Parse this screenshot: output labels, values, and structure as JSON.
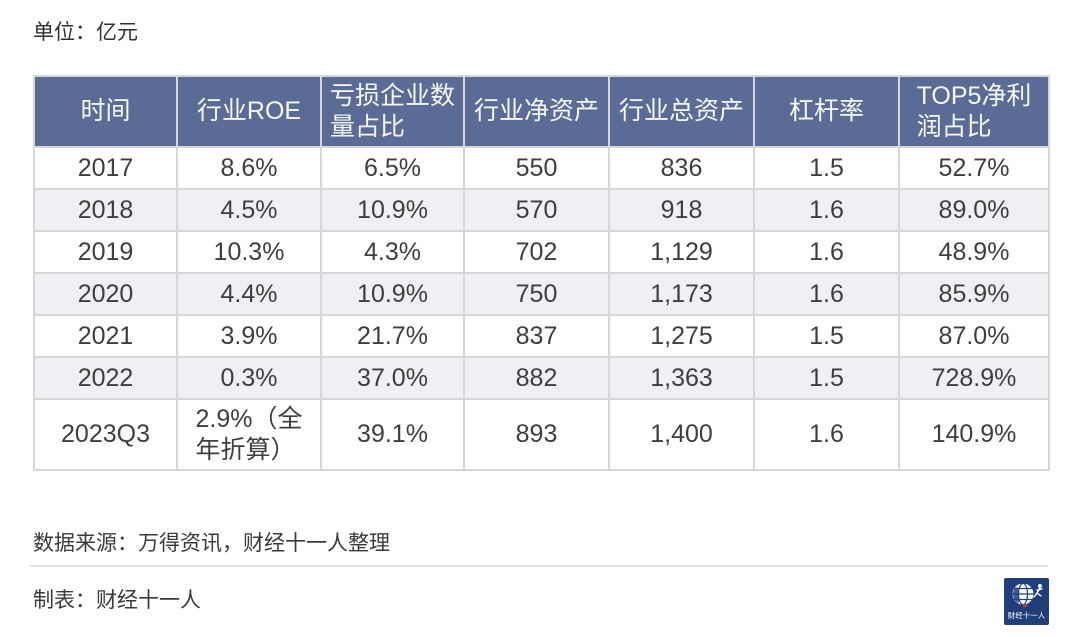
{
  "chart_data": {
    "type": "table",
    "unit": "单位：亿元",
    "columns": [
      {
        "key": "time",
        "label": "时间"
      },
      {
        "key": "industry-roe",
        "label": "行业ROE"
      },
      {
        "key": "loss-company-count-ratio",
        "label": "亏损企业数\n量占比"
      },
      {
        "key": "industry-net-assets",
        "label": "行业净资产"
      },
      {
        "key": "industry-total-assets",
        "label": "行业总资产"
      },
      {
        "key": "leverage-ratio",
        "label": "杠杆率"
      },
      {
        "key": "top5-net-profit-share",
        "label": "TOP5净利\n润占比"
      }
    ],
    "rows": [
      [
        "2017",
        "8.6%",
        "6.5%",
        "550",
        "836",
        "1.5",
        "52.7%"
      ],
      [
        "2018",
        "4.5%",
        "10.9%",
        "570",
        "918",
        "1.6",
        "89.0%"
      ],
      [
        "2019",
        "10.3%",
        "4.3%",
        "702",
        "1,129",
        "1.6",
        "48.9%"
      ],
      [
        "2020",
        "4.4%",
        "10.9%",
        "750",
        "1,173",
        "1.6",
        "85.9%"
      ],
      [
        "2021",
        "3.9%",
        "21.7%",
        "837",
        "1,275",
        "1.5",
        "87.0%"
      ],
      [
        "2022",
        "0.3%",
        "37.0%",
        "882",
        "1,363",
        "1.5",
        "728.9%"
      ],
      [
        "2023Q3",
        "2.9%（全\n年折算）",
        "39.1%",
        "893",
        "1,400",
        "1.6",
        "140.9%"
      ]
    ]
  },
  "footer": {
    "source": "数据来源：万得资讯，财经十一人整理",
    "credit": "制表：财经十一人",
    "logo_text": "财经十一人"
  },
  "colors": {
    "header_bg": "#5a6c95",
    "alt_row_bg": "#eef0f4",
    "border": "#d6d6d6",
    "body_text": "#3e3e3e",
    "logo_bg": "#1f3e7a",
    "logo_accent": "#c0392b"
  }
}
